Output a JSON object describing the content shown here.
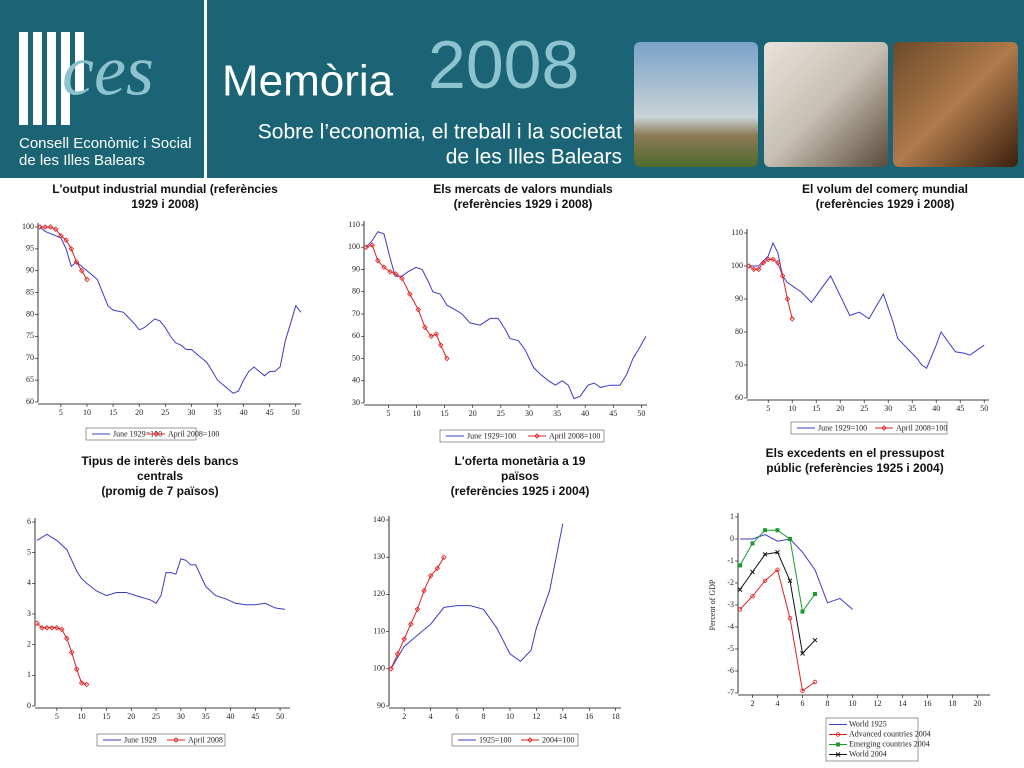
{
  "header": {
    "logo": "ces",
    "org": [
      "Consell Econòmic i Social",
      "de les Illes Balears"
    ],
    "title": "Memòria",
    "year": "2008",
    "subtitle": [
      "Sobre l’economia, el treball i la societat",
      "de les Illes Balears"
    ]
  },
  "chart_data": [
    {
      "type": "line",
      "title": [
        "L'output industrial mundial (referències",
        "1929 i 2008)"
      ],
      "xlim": [
        1,
        51
      ],
      "xticks": [
        5,
        10,
        15,
        20,
        25,
        30,
        35,
        40,
        45,
        50
      ],
      "ylim": [
        60,
        100
      ],
      "yticks": [
        60,
        65,
        70,
        75,
        80,
        85,
        90,
        95,
        100
      ],
      "legend": "bottom",
      "series": [
        {
          "name": "June 1929=100",
          "color": "#3b3bc8",
          "marker": "none",
          "x": [
            1,
            2,
            3,
            4,
            5,
            6,
            7,
            8,
            9,
            10,
            11,
            12,
            13,
            14,
            15,
            17,
            19,
            20,
            21,
            23,
            24,
            25,
            26,
            27,
            28,
            29,
            30,
            31,
            32,
            33,
            34,
            35,
            36,
            37,
            38,
            39,
            40,
            41,
            42,
            43,
            44,
            45,
            46,
            47,
            48,
            49,
            50,
            51
          ],
          "values": [
            100,
            99,
            98.5,
            98,
            97.5,
            95,
            91,
            92,
            91,
            90,
            89,
            88,
            85,
            82,
            81,
            80.5,
            78,
            76.5,
            77,
            79,
            78.5,
            77,
            75,
            73.5,
            73,
            72,
            72,
            71,
            70,
            69,
            67,
            65,
            64,
            63,
            62,
            62.5,
            65,
            67,
            68,
            67,
            66,
            67,
            67,
            68,
            74,
            78,
            82,
            80.5
          ]
        },
        {
          "name": "April 2008=100",
          "color": "#e02020",
          "marker": "diamond",
          "x": [
            1,
            2,
            3,
            4,
            5,
            6,
            7,
            8,
            9,
            10
          ],
          "values": [
            100,
            100,
            100,
            99.5,
            98,
            97,
            95,
            92,
            90,
            88
          ]
        }
      ]
    },
    {
      "type": "line",
      "title": [
        "Els mercats de valors mundials",
        "(referències 1929 i 2008)"
      ],
      "xlim": [
        1,
        51
      ],
      "xticks": [
        5,
        10,
        15,
        20,
        25,
        30,
        35,
        40,
        45,
        50
      ],
      "ylim": [
        30,
        110
      ],
      "yticks": [
        30,
        40,
        50,
        60,
        70,
        80,
        90,
        100,
        110
      ],
      "legend": "bottom",
      "series": [
        {
          "name": "June 1929=100",
          "color": "#3b3bc8",
          "marker": "none",
          "x": [
            1,
            2.1,
            3.1,
            4.2,
            5.3,
            6.2,
            7.4,
            8.5,
            9.9,
            11,
            12,
            12.9,
            14.2,
            15.4,
            16.8,
            18.1,
            19.5,
            21.3,
            23.1,
            24.5,
            25.8,
            26.6,
            28.1,
            29.3,
            30.8,
            32,
            33.5,
            34.7,
            35.9,
            37,
            38,
            39.1,
            40.5,
            41.6,
            42.7,
            44.4,
            46.2,
            47.4,
            48.5,
            49.7,
            50.8
          ],
          "values": [
            100,
            103,
            107,
            106,
            95,
            87,
            87,
            89,
            91,
            90,
            85,
            80,
            79,
            74,
            72,
            70,
            66,
            65,
            68,
            68,
            63,
            59,
            58,
            54,
            46,
            43,
            40,
            38,
            40,
            38,
            32,
            33,
            38,
            39,
            37,
            38,
            38,
            43,
            50,
            55,
            60
          ]
        },
        {
          "name": "April 2008=100",
          "color": "#e02020",
          "marker": "diamond",
          "x": [
            1,
            2.1,
            3.1,
            4.2,
            5.3,
            6.3,
            7.4,
            8.8,
            10.3,
            11.5,
            12.6,
            13.5,
            14.3,
            15.4
          ],
          "values": [
            100,
            101,
            94,
            91,
            89,
            88,
            86,
            79,
            72,
            64,
            60,
            61,
            56,
            50
          ]
        }
      ]
    },
    {
      "type": "line",
      "title": [
        "El volum del comerç mundial",
        "(referències 1929 i 2008)"
      ],
      "xlim": [
        1,
        51
      ],
      "xticks": [
        5,
        10,
        15,
        20,
        25,
        30,
        35,
        40,
        45,
        50
      ],
      "ylim": [
        60,
        110
      ],
      "yticks": [
        60,
        70,
        80,
        90,
        100,
        110
      ],
      "legend": "bottom",
      "series": [
        {
          "name": "June 1929=100",
          "color": "#3b3bc8",
          "marker": "none",
          "x": [
            1,
            3,
            5,
            6,
            7,
            8,
            9,
            10,
            12,
            14,
            16,
            18,
            20,
            22,
            24,
            25,
            26,
            28,
            29,
            31,
            32,
            34,
            36,
            37,
            38,
            40,
            41,
            43,
            44,
            46,
            47,
            48,
            50
          ],
          "values": [
            100,
            100,
            103,
            107,
            104,
            97,
            95,
            94,
            92,
            89,
            93,
            97,
            91,
            85,
            86,
            85,
            84,
            89,
            91.5,
            83,
            78,
            75,
            72,
            70,
            69,
            76,
            80,
            76,
            74,
            73.5,
            73,
            74,
            76
          ]
        },
        {
          "name": "April 2008=100",
          "color": "#e02020",
          "marker": "diamond",
          "x": [
            1,
            2,
            3,
            4,
            5,
            6,
            7,
            8,
            9,
            10
          ],
          "values": [
            100,
            99,
            99,
            101,
            102,
            102,
            101,
            97,
            90,
            84
          ]
        }
      ]
    },
    {
      "type": "line",
      "title": [
        "Tipus de interès dels bancs",
        "centrals",
        "(promig de 7 països)"
      ],
      "xlim": [
        1,
        52
      ],
      "xticks": [
        5,
        10,
        15,
        20,
        25,
        30,
        35,
        40,
        45,
        50
      ],
      "ylim": [
        0,
        6
      ],
      "yticks": [
        0,
        1,
        2,
        3,
        4,
        5,
        6
      ],
      "legend": "bottom",
      "series": [
        {
          "name": "June 1929",
          "color": "#3b3bc8",
          "marker": "none",
          "x": [
            1,
            3,
            5,
            7,
            9,
            10,
            11,
            13,
            15,
            17,
            19,
            21,
            23,
            24,
            25,
            26,
            27,
            28,
            29,
            30,
            31,
            32,
            33,
            35,
            37,
            39,
            41,
            43,
            45,
            47,
            49,
            51
          ],
          "values": [
            5.4,
            5.6,
            5.4,
            5.1,
            4.4,
            4.15,
            4,
            3.75,
            3.6,
            3.7,
            3.7,
            3.6,
            3.5,
            3.45,
            3.35,
            3.6,
            4.35,
            4.35,
            4.3,
            4.8,
            4.75,
            4.6,
            4.6,
            3.9,
            3.6,
            3.5,
            3.35,
            3.3,
            3.3,
            3.35,
            3.2,
            3.15
          ]
        },
        {
          "name": "April 2008",
          "color": "#e02020",
          "marker": "diamond",
          "x": [
            1,
            2,
            3,
            4,
            5,
            6,
            7,
            8,
            9,
            10,
            11
          ],
          "values": [
            2.7,
            2.55,
            2.55,
            2.55,
            2.55,
            2.5,
            2.2,
            1.75,
            1.2,
            0.75,
            0.7
          ]
        }
      ]
    },
    {
      "type": "line",
      "title": [
        "L'oferta monetària a 19",
        "països",
        "(referències 1925 i 2004)"
      ],
      "xlim": [
        1,
        18.4
      ],
      "xticks": [
        2,
        4,
        6,
        8,
        10,
        12,
        14,
        16,
        18
      ],
      "ylim": [
        90,
        140
      ],
      "yticks": [
        90,
        100,
        110,
        120,
        130,
        140
      ],
      "legend": "bottom",
      "series": [
        {
          "name": "1925=100",
          "color": "#3b3bc8",
          "marker": "none",
          "x": [
            1,
            2,
            3,
            4,
            5,
            6,
            7,
            8,
            9,
            10,
            10.8,
            11.6,
            12,
            13,
            14
          ],
          "values": [
            100,
            106,
            109,
            112,
            116.5,
            117,
            117,
            116,
            111,
            104,
            102,
            105,
            111,
            121,
            139
          ]
        },
        {
          "name": "2004=100",
          "color": "#e02020",
          "marker": "diamond",
          "x": [
            1,
            1.5,
            2,
            2.5,
            3,
            3.5,
            4,
            4.5,
            5
          ],
          "values": [
            100,
            104,
            108,
            112,
            116,
            121,
            125,
            127,
            130
          ]
        }
      ]
    },
    {
      "type": "line",
      "title": [
        "Els excedents en el pressupost",
        "públic (referències 1925 i 2004)"
      ],
      "ylabel": "Percent of GDP",
      "xlim": [
        1,
        21
      ],
      "xticks": [
        2,
        4,
        6,
        8,
        10,
        12,
        14,
        16,
        18,
        20
      ],
      "ylim": [
        -7,
        1
      ],
      "yticks": [
        -7,
        -6,
        -5,
        -4,
        -3,
        -2,
        -1,
        0,
        1
      ],
      "legend": "box",
      "series": [
        {
          "name": "World 1925",
          "color": "#3b3bc8",
          "marker": "none",
          "x": [
            1,
            2,
            3,
            4,
            5,
            6,
            7,
            8,
            9,
            10
          ],
          "values": [
            0,
            0,
            0.2,
            -0.1,
            0,
            -0.6,
            -1.4,
            -2.9,
            -2.7,
            -3.2
          ]
        },
        {
          "name": "Advanced countries 2004",
          "color": "#e02020",
          "marker": "circle",
          "x": [
            1,
            2,
            3,
            4,
            5,
            6,
            7
          ],
          "values": [
            -3.2,
            -2.6,
            -1.9,
            -1.4,
            -3.6,
            -6.9,
            -6.5
          ]
        },
        {
          "name": "Emerging countries 2004",
          "color": "#1a9a2a",
          "marker": "square",
          "x": [
            1,
            2,
            3,
            4,
            5,
            6,
            7
          ],
          "values": [
            -1.2,
            -0.2,
            0.4,
            0.4,
            0,
            -3.3,
            -2.5
          ]
        },
        {
          "name": "World 2004",
          "color": "#111111",
          "marker": "cross",
          "x": [
            1,
            2,
            3,
            4,
            5,
            6,
            7
          ],
          "values": [
            -2.3,
            -1.5,
            -0.7,
            -0.6,
            -1.9,
            -5.2,
            -4.6
          ]
        }
      ]
    }
  ]
}
